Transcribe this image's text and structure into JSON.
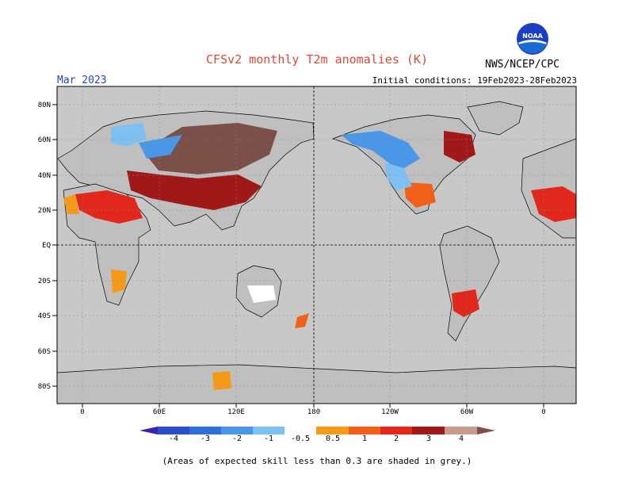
{
  "header": {
    "title": "CFSv2 monthly T2m anomalies (K)",
    "month": "Mar 2023",
    "initial_conditions": "Initial conditions: 19Feb2023-28Feb2023",
    "organization": "NWS/NCEP/CPC",
    "logo_text": "NOAA"
  },
  "colors": {
    "title": "#d94a3a",
    "month": "#2244cc",
    "ocean": "#c8c8c8",
    "grey_skill": "#bfbfbf"
  },
  "map": {
    "lat_labels": [
      "80N",
      "60N",
      "40N",
      "20N",
      "EQ",
      "20S",
      "40S",
      "60S",
      "80S"
    ],
    "lon_labels": [
      "0",
      "60E",
      "120E",
      "180",
      "120W",
      "60W",
      "0"
    ]
  },
  "colorbar": {
    "labels": [
      "-4",
      "-3",
      "-2",
      "-1",
      "-0.5",
      "0.5",
      "1",
      "2",
      "3",
      "4"
    ],
    "colors": [
      "#3a1fb0",
      "#2a4fc8",
      "#2f6fd8",
      "#4a97e8",
      "#7fc0f2",
      "#ffffff",
      "#f59a18",
      "#f06018",
      "#e2281c",
      "#a01818",
      "#c89a90",
      "#7a5048"
    ]
  },
  "footnote": "(Areas of expected skill less than 0.3 are shaded in grey.)"
}
